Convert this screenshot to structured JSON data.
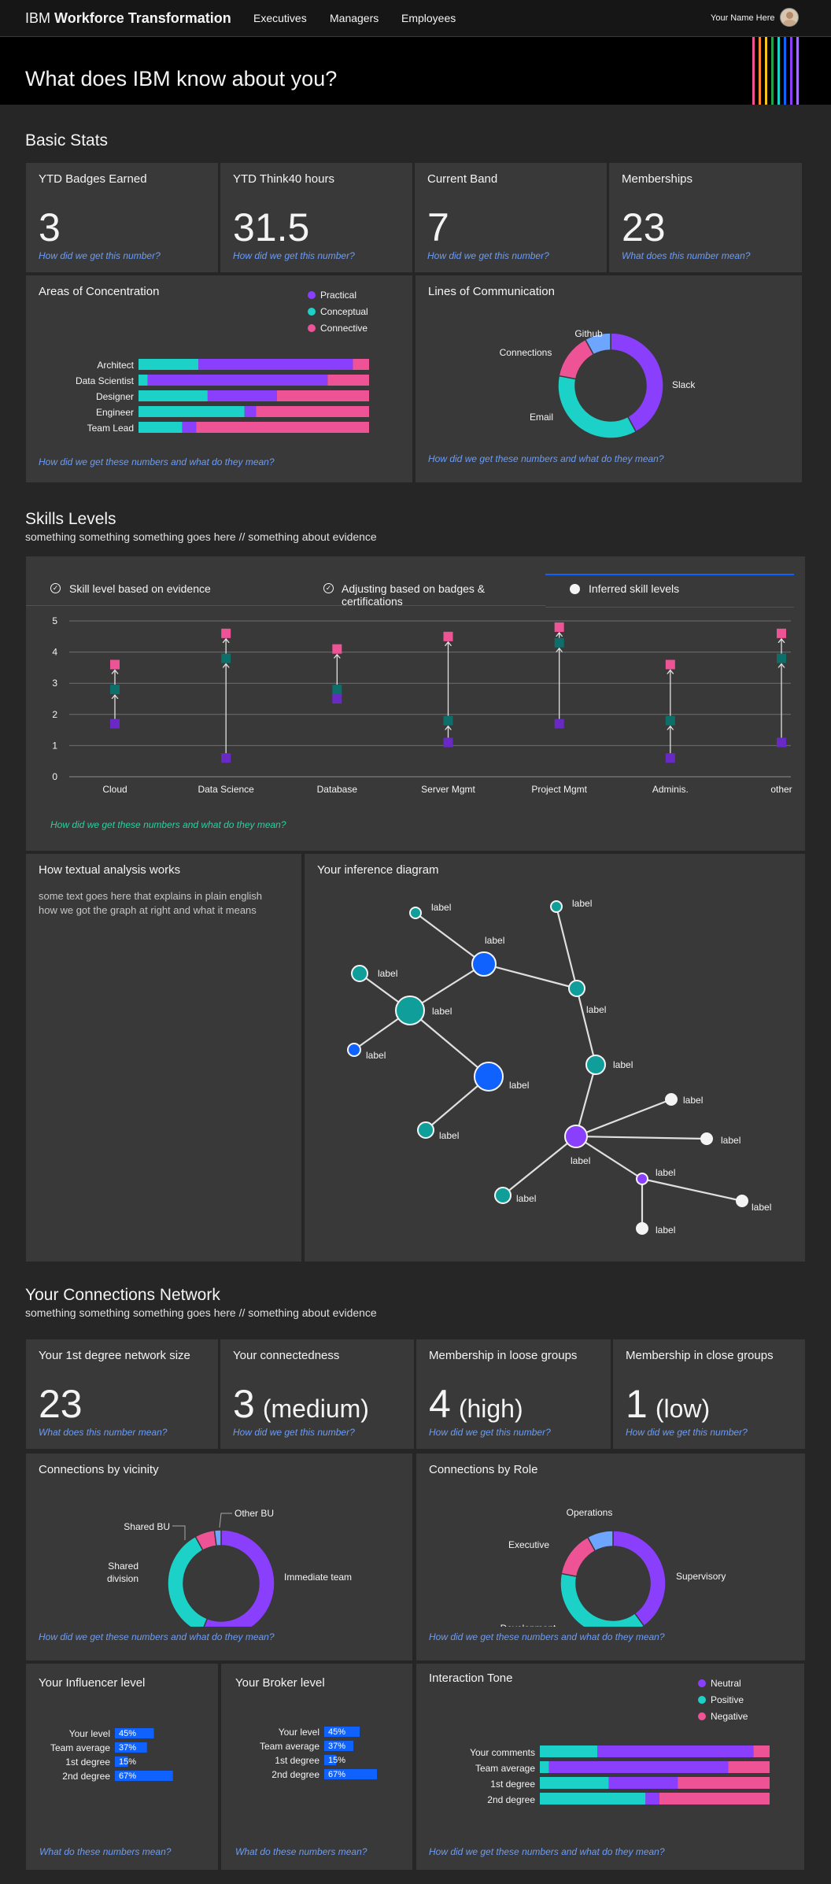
{
  "header": {
    "brand_prefix": "IBM",
    "brand_name": "Workforce Transformation",
    "nav": [
      "Executives",
      "Managers",
      "Employees"
    ],
    "user_name": "Your Name Here"
  },
  "hero": {
    "title": "What does IBM know about you?"
  },
  "colors": {
    "practical": "#8a3ffc",
    "conceptual": "#1cd1c7",
    "connective": "#ee5396",
    "light_blue": "#6ea6ff",
    "blue": "#0f62fe",
    "teal": "#0f9e9a",
    "stripes": [
      "#ee5396",
      "#ff832b",
      "#f1c21b",
      "#24a148",
      "#1cd1c7",
      "#0f62fe",
      "#8a3ffc",
      "#a56eff"
    ]
  },
  "basic_stats": {
    "title": "Basic Stats",
    "cards": [
      {
        "label": "YTD Badges Earned",
        "value": "3",
        "help": "How did we get this number?"
      },
      {
        "label": "YTD Think40 hours",
        "value": "31.5",
        "help": "How did we get this number?"
      },
      {
        "label": "Current Band",
        "value": "7",
        "help": "How did we get this number?"
      },
      {
        "label": "Memberships",
        "value": "23",
        "help": "What does this number mean?"
      }
    ],
    "concentration": {
      "title": "Areas of Concentration",
      "legend": [
        "Practical",
        "Conceptual",
        "Connective"
      ],
      "help": "How did we get these numbers and what do they mean?"
    },
    "communication": {
      "title": "Lines of Communication",
      "help": "How did we get these numbers and what do they mean?"
    }
  },
  "skills": {
    "title": "Skills Levels",
    "subtitle": "something something something goes here // something about evidence",
    "tabs": [
      "Skill level based on evidence",
      "Adjusting based on badges & certifications",
      "Inferred skill levels"
    ],
    "help": "How did we get these numbers and what do they mean?"
  },
  "textual": {
    "title": "How textual analysis works",
    "body": "some text goes here that explains in plain english how we got the graph at right and what it means"
  },
  "inference": {
    "title": "Your inference diagram",
    "node_label": "label"
  },
  "network": {
    "title": "Your Connections Network",
    "subtitle": "something something something goes here // something about evidence",
    "cards": [
      {
        "label": "Your 1st degree network size",
        "value": "23",
        "qual": "",
        "help": "What does this number mean?"
      },
      {
        "label": "Your connectedness",
        "value": "3",
        "qual": "(medium)",
        "help": "How did we get this number?"
      },
      {
        "label": "Membership in loose groups",
        "value": "4",
        "qual": "(high)",
        "help": "How did we get this number?"
      },
      {
        "label": "Membership in close groups",
        "value": "1",
        "qual": "(low)",
        "help": "How did we get this number?"
      }
    ],
    "vicinity": {
      "title": "Connections by vicinity",
      "help": "How did we get these numbers and what do they mean?"
    },
    "role": {
      "title": "Connections by Role",
      "help": "How did we get these numbers and what do they mean?"
    },
    "influencer": {
      "title": "Your Influencer level",
      "help": "What do these numbers mean?"
    },
    "broker": {
      "title": "Your Broker level",
      "help": "What do these numbers mean?"
    },
    "tone": {
      "title": "Interaction Tone",
      "legend": [
        "Neutral",
        "Positive",
        "Negative"
      ],
      "help": "How did we get these numbers and what do they mean?"
    }
  },
  "chart_data": [
    {
      "id": "concentration",
      "type": "bar",
      "stacked": true,
      "orientation": "horizontal",
      "categories": [
        "Architect",
        "Data Scientist",
        "Designer",
        "Engineer",
        "Team Lead"
      ],
      "series": [
        {
          "name": "Conceptual",
          "values": [
            26,
            4,
            30,
            46,
            19
          ]
        },
        {
          "name": "Practical",
          "values": [
            67,
            78,
            30,
            5,
            6
          ]
        },
        {
          "name": "Connective",
          "values": [
            7,
            18,
            40,
            49,
            75
          ]
        }
      ],
      "xlim": [
        0,
        100
      ],
      "legend": "top-right"
    },
    {
      "id": "communication",
      "type": "pie",
      "donut": true,
      "labels": [
        "Slack",
        "Email",
        "Connections",
        "Github"
      ],
      "values": [
        42,
        36,
        14,
        8
      ]
    },
    {
      "id": "skills",
      "type": "scatter",
      "categories": [
        "Cloud",
        "Data Science",
        "Database",
        "Server Mgmt",
        "Project Mgmt",
        "Adminis.",
        "other"
      ],
      "series": [
        {
          "name": "Skill level based on evidence",
          "values": [
            1.7,
            0.6,
            2.5,
            1.1,
            1.7,
            0.6,
            1.1
          ]
        },
        {
          "name": "Adjusting based on badges & certifications",
          "values": [
            2.8,
            3.8,
            2.8,
            1.8,
            4.3,
            1.8,
            3.8
          ]
        },
        {
          "name": "Inferred skill levels",
          "values": [
            3.6,
            4.6,
            4.1,
            4.5,
            4.8,
            3.6,
            4.6
          ]
        }
      ],
      "ylim": [
        0,
        5
      ],
      "yticks": [
        0,
        1,
        2,
        3,
        4,
        5
      ],
      "grid": true
    },
    {
      "id": "vicinity",
      "type": "pie",
      "donut": true,
      "labels": [
        "Immediate team",
        "Shared division",
        "Shared BU",
        "Other BU"
      ],
      "values": [
        56,
        36,
        6,
        2
      ]
    },
    {
      "id": "role",
      "type": "pie",
      "donut": true,
      "labels": [
        "Supervisory",
        "Development",
        "Executive",
        "Operations"
      ],
      "values": [
        40,
        38,
        14,
        8
      ]
    },
    {
      "id": "influencer",
      "type": "bar",
      "orientation": "horizontal",
      "categories": [
        "Your level",
        "Team average",
        "1st degree",
        "2nd degree"
      ],
      "values": [
        45,
        37,
        15,
        67
      ],
      "xlim": [
        0,
        100
      ]
    },
    {
      "id": "broker",
      "type": "bar",
      "orientation": "horizontal",
      "categories": [
        "Your level",
        "Team average",
        "1st degree",
        "2nd degree"
      ],
      "values": [
        45,
        37,
        15,
        67
      ],
      "xlim": [
        0,
        100
      ]
    },
    {
      "id": "tone",
      "type": "bar",
      "stacked": true,
      "orientation": "horizontal",
      "categories": [
        "Your comments",
        "Team average",
        "1st degree",
        "2nd degree"
      ],
      "series": [
        {
          "name": "Positive",
          "values": [
            25,
            4,
            30,
            46
          ]
        },
        {
          "name": "Neutral",
          "values": [
            68,
            78,
            30,
            6
          ]
        },
        {
          "name": "Negative",
          "values": [
            7,
            18,
            40,
            48
          ]
        }
      ],
      "xlim": [
        0,
        100
      ],
      "legend": "top-right"
    }
  ]
}
